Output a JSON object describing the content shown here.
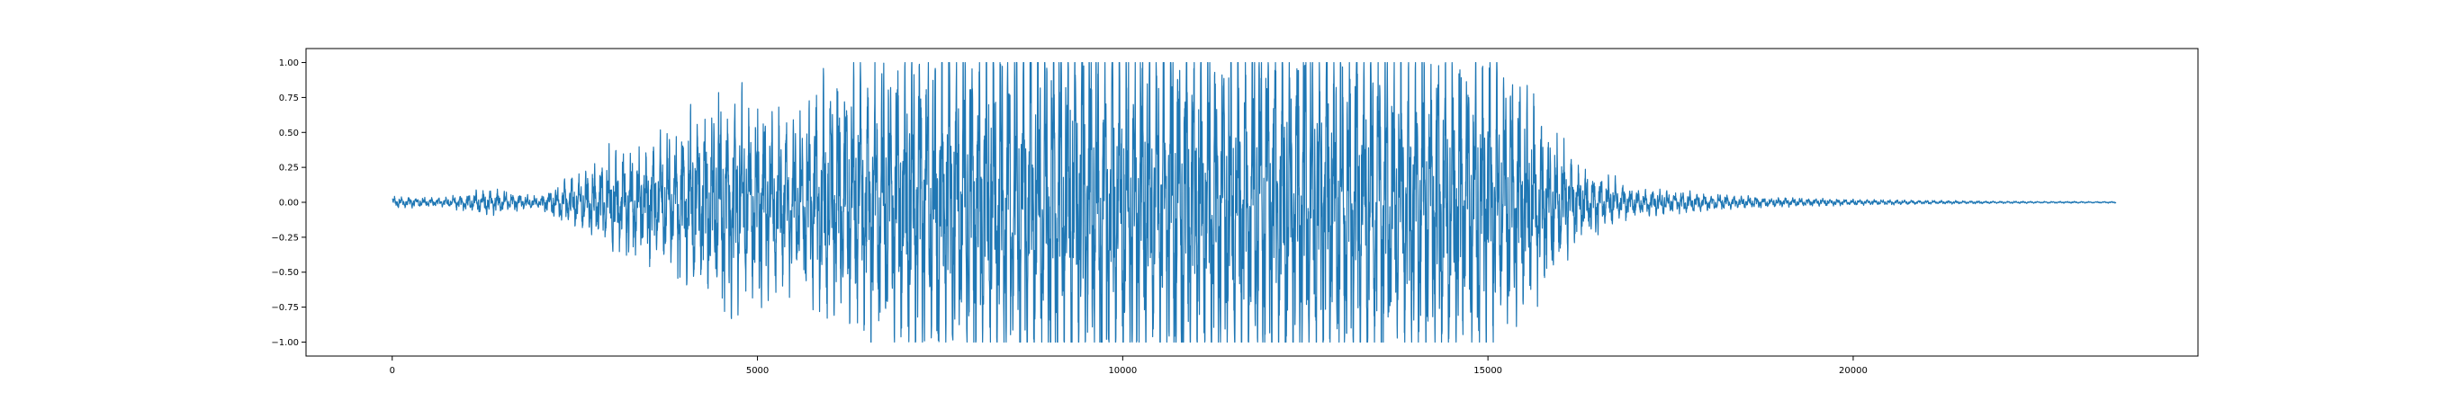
{
  "chart_data": {
    "type": "line",
    "title": "",
    "xlabel": "",
    "ylabel": "",
    "xlim": [
      -1180,
      24720
    ],
    "ylim": [
      -1.1,
      1.1
    ],
    "x_ticks": [
      0,
      5000,
      10000,
      15000,
      20000
    ],
    "x_tick_labels": [
      "0",
      "5000",
      "10000",
      "15000",
      "20000"
    ],
    "y_ticks": [
      -1.0,
      -0.75,
      -0.5,
      -0.25,
      0.0,
      0.25,
      0.5,
      0.75,
      1.0
    ],
    "y_tick_labels": [
      "−1.00",
      "−0.75",
      "−0.50",
      "−0.25",
      "0.00",
      "0.25",
      "0.50",
      "0.75",
      "1.00"
    ],
    "grid": false,
    "legend": "none",
    "series": [
      {
        "color": "#1f77b4",
        "x_range": [
          0,
          23600
        ],
        "clip": [
          -1.0,
          1.0
        ],
        "envelope": [
          {
            "x": 0,
            "amp": 0.04
          },
          {
            "x": 700,
            "amp": 0.03
          },
          {
            "x": 1300,
            "amp": 0.09
          },
          {
            "x": 2000,
            "amp": 0.04
          },
          {
            "x": 2600,
            "amp": 0.22
          },
          {
            "x": 3000,
            "amp": 0.34
          },
          {
            "x": 3500,
            "amp": 0.4
          },
          {
            "x": 4000,
            "amp": 0.55
          },
          {
            "x": 4500,
            "amp": 0.78
          },
          {
            "x": 5000,
            "amp": 0.7
          },
          {
            "x": 5500,
            "amp": 0.55
          },
          {
            "x": 6000,
            "amp": 0.9
          },
          {
            "x": 6500,
            "amp": 0.95
          },
          {
            "x": 7200,
            "amp": 1.15
          },
          {
            "x": 9000,
            "amp": 1.3
          },
          {
            "x": 11000,
            "amp": 1.3
          },
          {
            "x": 13000,
            "amp": 1.25
          },
          {
            "x": 14500,
            "amp": 1.15
          },
          {
            "x": 15300,
            "amp": 0.95
          },
          {
            "x": 15800,
            "amp": 0.55
          },
          {
            "x": 16300,
            "amp": 0.25
          },
          {
            "x": 17000,
            "amp": 0.1
          },
          {
            "x": 18500,
            "amp": 0.04
          },
          {
            "x": 20000,
            "amp": 0.02
          },
          {
            "x": 22000,
            "amp": 0.008
          },
          {
            "x": 23600,
            "amp": 0.005
          }
        ]
      }
    ]
  }
}
